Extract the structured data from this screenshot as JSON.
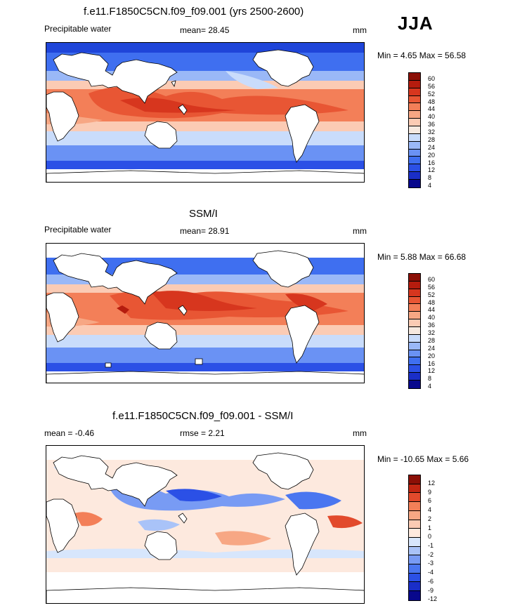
{
  "season": "JJA",
  "palette_model": [
    "#08088c",
    "#1a2ec8",
    "#2b50e6",
    "#3f6ff0",
    "#6a92f4",
    "#9ab8f7",
    "#c9dcfb",
    "#f6e9e0",
    "#fbcbb4",
    "#f7a784",
    "#f37f58",
    "#e85634",
    "#d7361e",
    "#b51c0e",
    "#8b0f06"
  ],
  "palette_diff": [
    "#08088c",
    "#1a2ec8",
    "#2b50e6",
    "#4a76f0",
    "#789bf4",
    "#a9c3f8",
    "#d7e6fc",
    "#fde9de",
    "#fbcbb4",
    "#f7a784",
    "#f37f58",
    "#e24a2c",
    "#c12612",
    "#8b0f06"
  ],
  "panels": [
    {
      "title": "f.e11.F1850C5CN.f09_f09.001 (yrs 2500-2600)",
      "left_label": "Precipitable water",
      "center_label": "mean=  28.45",
      "right_label": "mm",
      "minmax": "Min =   4.65 Max =  56.58",
      "ticks": [
        "60",
        "56",
        "52",
        "48",
        "44",
        "40",
        "36",
        "32",
        "28",
        "24",
        "20",
        "16",
        "12",
        "8",
        "4"
      ]
    },
    {
      "title": "SSM/I",
      "left_label": "Precipitable water",
      "center_label": "mean=  28.91",
      "right_label": "mm",
      "minmax": "Min =   5.88 Max =  66.68",
      "ticks": [
        "60",
        "56",
        "52",
        "48",
        "44",
        "40",
        "36",
        "32",
        "28",
        "24",
        "20",
        "16",
        "12",
        "8",
        "4"
      ]
    },
    {
      "title": "f.e11.F1850C5CN.f09_f09.001 - SSM/I",
      "left_label": "mean =  -0.46",
      "center_label": "rmse =   2.21",
      "right_label": "mm",
      "minmax": "Min = -10.65 Max =   5.66",
      "ticks": [
        "12",
        "9",
        "6",
        "4",
        "2",
        "1",
        "0",
        "-1",
        "-2",
        "-3",
        "-4",
        "-6",
        "-9",
        "-12"
      ]
    }
  ]
}
